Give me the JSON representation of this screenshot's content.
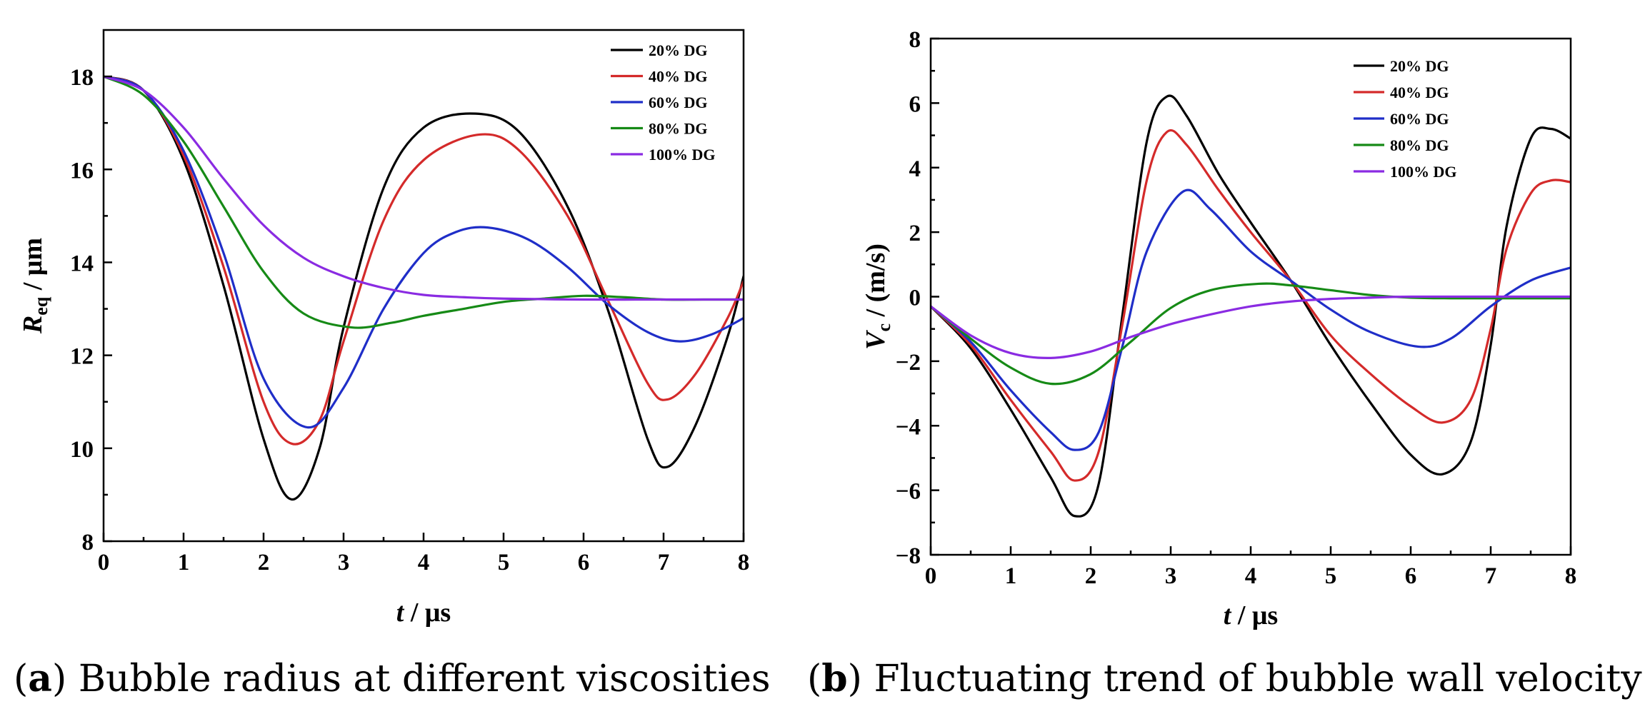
{
  "colors": {
    "20% DG": "#000000",
    "40% DG": "#d42a2a",
    "60% DG": "#1f2ec8",
    "80% DG": "#168a16",
    "100% DG": "#8a2be2"
  },
  "chart_data": [
    {
      "type": "line",
      "panel": "a",
      "caption_letter": "a",
      "caption_text": "Bubble radius at different viscosities",
      "xlabel_italic": "t",
      "xlabel_rest": " / μs",
      "ylabel_main": "R",
      "ylabel_sub": "eq",
      "ylabel_rest": " / μm",
      "xlim": [
        0,
        8
      ],
      "ylim": [
        8,
        19
      ],
      "xticks": [
        0,
        1,
        2,
        3,
        4,
        5,
        6,
        7,
        8
      ],
      "yticks": [
        8,
        10,
        12,
        14,
        16,
        18
      ],
      "xtick_labels": [
        "0",
        "1",
        "2",
        "3",
        "4",
        "5",
        "6",
        "7",
        "8"
      ],
      "ytick_labels": [
        "8",
        "10",
        "12",
        "14",
        "16",
        "18"
      ],
      "legend": [
        "20% DG",
        "40% DG",
        "60% DG",
        "80% DG",
        "100% DG"
      ],
      "series": [
        {
          "name": "20% DG",
          "x": [
            0,
            0.5,
            1,
            1.5,
            2,
            2.35,
            2.7,
            3,
            3.5,
            4,
            4.65,
            5.2,
            5.8,
            6.3,
            6.8,
            7.05,
            7.4,
            7.8,
            8
          ],
          "values": [
            18,
            17.7,
            16.2,
            13.5,
            10.2,
            8.9,
            10.0,
            12.6,
            15.6,
            16.9,
            17.2,
            16.8,
            15.2,
            13.0,
            10.2,
            9.6,
            10.5,
            12.4,
            13.7
          ]
        },
        {
          "name": "40% DG",
          "x": [
            0,
            0.5,
            1,
            1.5,
            2,
            2.35,
            2.7,
            3,
            3.5,
            4,
            4.7,
            5.2,
            5.8,
            6.3,
            6.8,
            7.05,
            7.4,
            7.8,
            8
          ],
          "values": [
            18,
            17.7,
            16.3,
            13.9,
            11.0,
            10.1,
            10.6,
            12.3,
            14.9,
            16.2,
            16.75,
            16.4,
            15.0,
            13.2,
            11.4,
            11.05,
            11.6,
            12.8,
            13.6
          ]
        },
        {
          "name": "60% DG",
          "x": [
            0,
            0.5,
            1,
            1.5,
            2,
            2.55,
            3,
            3.5,
            4,
            4.4,
            4.8,
            5.3,
            5.8,
            6.3,
            6.8,
            7.2,
            7.6,
            8
          ],
          "values": [
            18,
            17.7,
            16.4,
            14.2,
            11.5,
            10.45,
            11.3,
            13.0,
            14.2,
            14.65,
            14.75,
            14.5,
            13.9,
            13.1,
            12.5,
            12.3,
            12.45,
            12.8
          ]
        },
        {
          "name": "80% DG",
          "x": [
            0,
            0.5,
            1,
            1.5,
            2,
            2.5,
            3.1,
            3.6,
            4,
            4.5,
            5,
            5.5,
            6,
            6.5,
            7,
            7.5,
            8
          ],
          "values": [
            18,
            17.6,
            16.6,
            15.2,
            13.8,
            12.9,
            12.6,
            12.7,
            12.85,
            13.0,
            13.15,
            13.22,
            13.28,
            13.25,
            13.2,
            13.2,
            13.2
          ]
        },
        {
          "name": "100% DG",
          "x": [
            0,
            0.5,
            1,
            1.5,
            2,
            2.5,
            3,
            3.5,
            4,
            4.5,
            5,
            6,
            7,
            8
          ],
          "values": [
            18,
            17.7,
            16.9,
            15.8,
            14.8,
            14.1,
            13.7,
            13.45,
            13.3,
            13.25,
            13.22,
            13.2,
            13.2,
            13.2
          ]
        }
      ]
    },
    {
      "type": "line",
      "panel": "b",
      "caption_letter": "b",
      "caption_text": "Fluctuating trend of bubble wall velocity",
      "xlabel_italic": "t",
      "xlabel_rest": " / μs",
      "ylabel_main": "V",
      "ylabel_sub": "c",
      "ylabel_rest": " / (m/s)",
      "xlim": [
        0,
        8
      ],
      "ylim": [
        -8,
        8
      ],
      "xticks": [
        0,
        1,
        2,
        3,
        4,
        5,
        6,
        7,
        8
      ],
      "yticks": [
        -8,
        -6,
        -4,
        -2,
        0,
        2,
        4,
        6,
        8
      ],
      "xtick_labels": [
        "0",
        "1",
        "2",
        "3",
        "4",
        "5",
        "6",
        "7",
        "8"
      ],
      "ytick_labels": [
        "−8",
        "−6",
        "−4",
        "−2",
        "0",
        "2",
        "4",
        "6",
        "8"
      ],
      "legend": [
        "20% DG",
        "40% DG",
        "60% DG",
        "80% DG",
        "100% DG"
      ],
      "series": [
        {
          "name": "20% DG",
          "x": [
            0,
            0.5,
            1,
            1.5,
            1.8,
            2.1,
            2.4,
            2.7,
            2.95,
            3.2,
            3.6,
            4,
            4.5,
            5,
            5.5,
            6,
            6.4,
            6.75,
            7,
            7.2,
            7.5,
            7.75,
            8
          ],
          "values": [
            -0.3,
            -1.6,
            -3.5,
            -5.6,
            -6.8,
            -5.8,
            -0.5,
            4.8,
            6.2,
            5.6,
            3.8,
            2.3,
            0.5,
            -1.5,
            -3.3,
            -4.9,
            -5.5,
            -4.5,
            -1.5,
            2.2,
            4.9,
            5.2,
            4.9
          ]
        },
        {
          "name": "40% DG",
          "x": [
            0,
            0.5,
            1,
            1.5,
            1.8,
            2.1,
            2.4,
            2.7,
            2.95,
            3.2,
            3.6,
            4,
            4.5,
            5,
            5.5,
            6,
            6.4,
            6.75,
            7,
            7.2,
            7.5,
            7.75,
            8
          ],
          "values": [
            -0.3,
            -1.5,
            -3.2,
            -4.8,
            -5.7,
            -4.8,
            -0.8,
            3.6,
            5.1,
            4.7,
            3.3,
            2.0,
            0.5,
            -1.2,
            -2.4,
            -3.4,
            -3.9,
            -3.2,
            -1.0,
            1.5,
            3.2,
            3.6,
            3.55
          ]
        },
        {
          "name": "60% DG",
          "x": [
            0,
            0.5,
            1,
            1.5,
            1.8,
            2.1,
            2.4,
            2.7,
            3.15,
            3.5,
            4,
            4.5,
            5,
            5.5,
            6.1,
            6.5,
            7,
            7.5,
            8
          ],
          "values": [
            -0.3,
            -1.4,
            -2.9,
            -4.2,
            -4.75,
            -4.2,
            -1.5,
            1.4,
            3.25,
            2.7,
            1.4,
            0.5,
            -0.4,
            -1.1,
            -1.55,
            -1.3,
            -0.3,
            0.5,
            0.9
          ]
        },
        {
          "name": "80% DG",
          "x": [
            0,
            0.5,
            1,
            1.5,
            2,
            2.5,
            3,
            3.5,
            4.1,
            4.5,
            5,
            5.5,
            6,
            6.5,
            7,
            7.5,
            8
          ],
          "values": [
            -0.3,
            -1.3,
            -2.2,
            -2.7,
            -2.4,
            -1.4,
            -0.35,
            0.2,
            0.4,
            0.35,
            0.2,
            0.05,
            -0.03,
            -0.05,
            -0.05,
            -0.05,
            -0.05
          ]
        },
        {
          "name": "100% DG",
          "x": [
            0,
            0.5,
            1,
            1.5,
            2,
            2.5,
            3,
            3.5,
            4,
            4.5,
            5,
            5.5,
            6,
            7,
            8
          ],
          "values": [
            -0.3,
            -1.2,
            -1.75,
            -1.9,
            -1.7,
            -1.25,
            -0.85,
            -0.55,
            -0.3,
            -0.15,
            -0.07,
            -0.03,
            0,
            0,
            0
          ]
        }
      ]
    }
  ]
}
